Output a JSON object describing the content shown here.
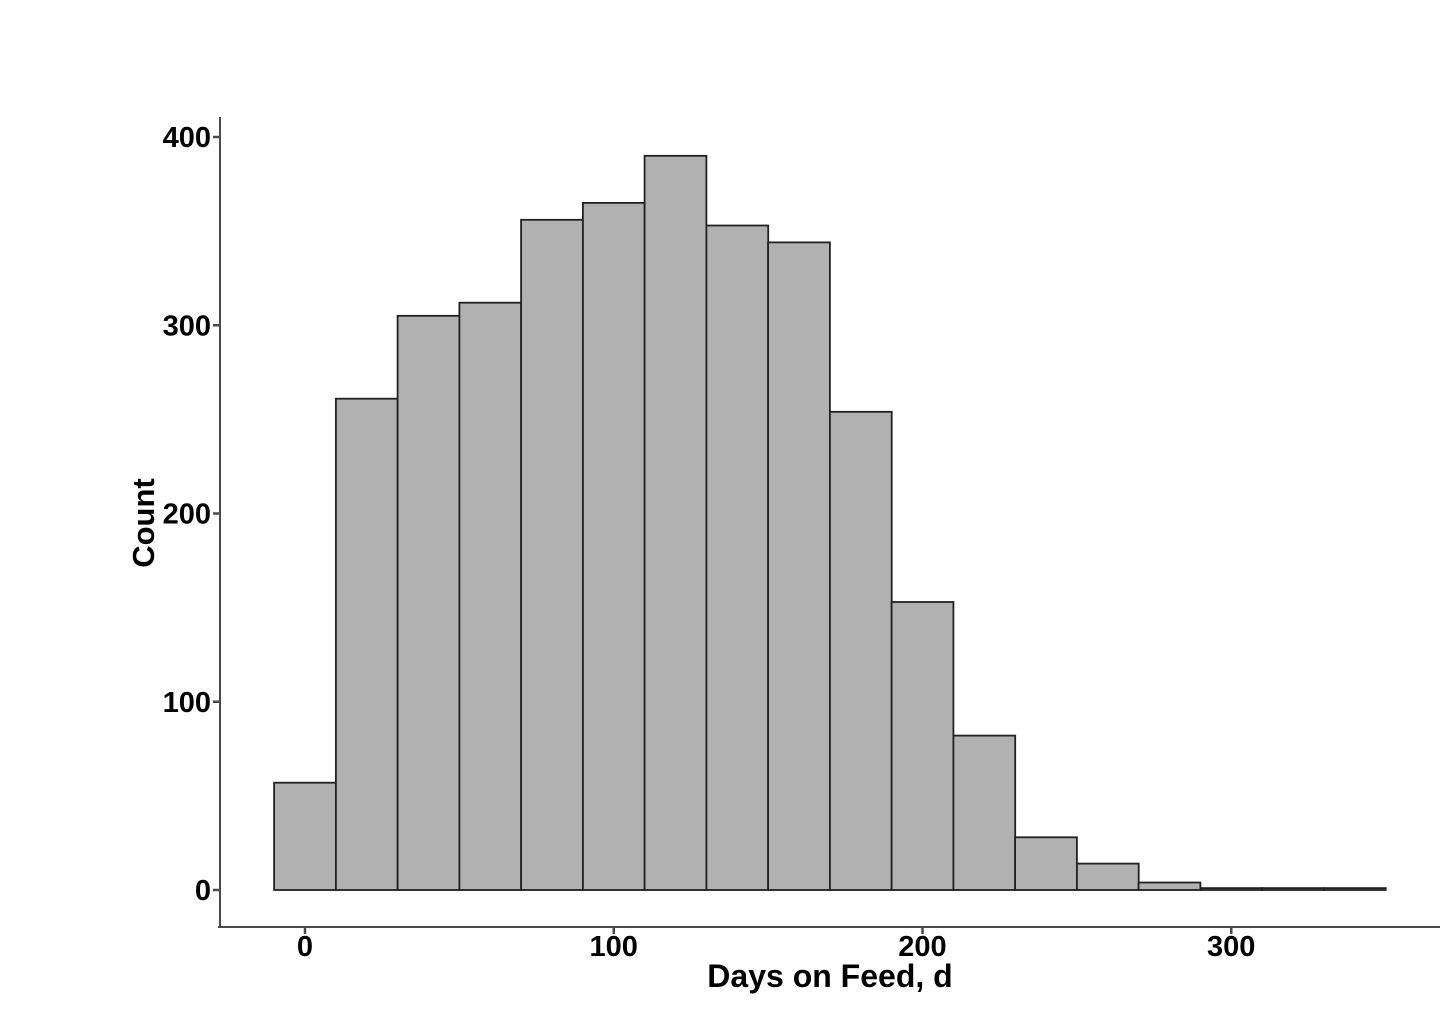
{
  "figure": {
    "background": "#ffffff"
  },
  "chart_data": {
    "type": "bar",
    "subtype": "histogram",
    "title": "",
    "xlabel": "Days on Feed, d",
    "ylabel": "Count",
    "bin_start": -10,
    "bin_width": 20,
    "bin_edges": [
      -10,
      10,
      30,
      50,
      70,
      90,
      110,
      130,
      150,
      170,
      190,
      210,
      230,
      250,
      270,
      290,
      310,
      330,
      350
    ],
    "counts": [
      57,
      261,
      305,
      312,
      356,
      365,
      390,
      353,
      344,
      254,
      153,
      82,
      28,
      14,
      4,
      1,
      1,
      1
    ],
    "x_ticks": [
      "0",
      "100",
      "200",
      "300"
    ],
    "x_tick_values": [
      0,
      100,
      200,
      300
    ],
    "y_ticks": [
      "0",
      "100",
      "200",
      "300",
      "400"
    ],
    "y_tick_values": [
      0,
      100,
      200,
      300,
      400
    ],
    "xlim": [
      -27,
      367
    ],
    "ylim": [
      0,
      410
    ],
    "grid": false,
    "legend": null,
    "bar_fill": "#b1b1b1",
    "bar_stroke": "#212121",
    "axis_color": "#4a4a4a",
    "text_color": "#000000"
  }
}
